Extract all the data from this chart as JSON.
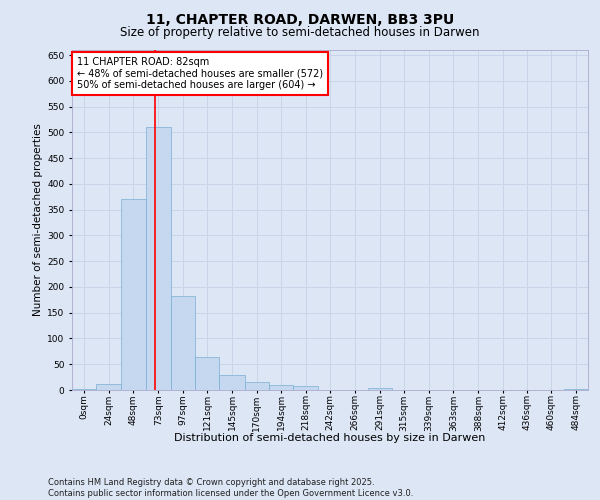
{
  "title": "11, CHAPTER ROAD, DARWEN, BB3 3PU",
  "subtitle": "Size of property relative to semi-detached houses in Darwen",
  "xlabel": "Distribution of semi-detached houses by size in Darwen",
  "ylabel": "Number of semi-detached properties",
  "bin_labels": [
    "0sqm",
    "24sqm",
    "48sqm",
    "73sqm",
    "97sqm",
    "121sqm",
    "145sqm",
    "170sqm",
    "194sqm",
    "218sqm",
    "242sqm",
    "266sqm",
    "291sqm",
    "315sqm",
    "339sqm",
    "363sqm",
    "388sqm",
    "412sqm",
    "436sqm",
    "460sqm",
    "484sqm"
  ],
  "bin_edges_num": [
    0,
    24,
    48,
    73,
    97,
    121,
    145,
    170,
    194,
    218,
    242,
    266,
    291,
    315,
    339,
    363,
    388,
    412,
    436,
    460,
    484
  ],
  "bar_heights": [
    2,
    12,
    370,
    510,
    183,
    65,
    30,
    15,
    10,
    7,
    0,
    0,
    4,
    0,
    0,
    0,
    0,
    0,
    0,
    0,
    2
  ],
  "bar_color": "#c5d8ef",
  "bar_edge_color": "#7aafd4",
  "vline_x": 82,
  "vline_color": "red",
  "annotation_text": "11 CHAPTER ROAD: 82sqm\n← 48% of semi-detached houses are smaller (572)\n50% of semi-detached houses are larger (604) →",
  "annotation_box_color": "#ffffff",
  "annotation_box_edge": "red",
  "ylim": [
    0,
    660
  ],
  "yticks": [
    0,
    50,
    100,
    150,
    200,
    250,
    300,
    350,
    400,
    450,
    500,
    550,
    600,
    650
  ],
  "grid_color": "#c8d4e8",
  "background_color": "#dce6f5",
  "footnote": "Contains HM Land Registry data © Crown copyright and database right 2025.\nContains public sector information licensed under the Open Government Licence v3.0.",
  "title_fontsize": 10,
  "subtitle_fontsize": 8.5,
  "xlabel_fontsize": 8,
  "ylabel_fontsize": 7.5,
  "tick_fontsize": 6.5,
  "annotation_fontsize": 7,
  "footnote_fontsize": 6
}
